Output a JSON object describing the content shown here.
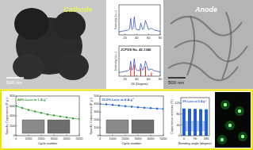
{
  "images": [
    {
      "label": "Cathode",
      "scale_bar": "500 nm"
    },
    {
      "label": "Anode",
      "scale_bar": "500 nm"
    }
  ],
  "chart_data": [
    {
      "type": "line",
      "y_label": "Intensity (a.u.)",
      "x": [
        10,
        15,
        20,
        25,
        28,
        30,
        31,
        32,
        34,
        36,
        38,
        40,
        45,
        47,
        50,
        52,
        55,
        60,
        65,
        70,
        75,
        80
      ],
      "series": [
        {
          "color": "#1f3fbf",
          "values": [
            10,
            12,
            14,
            16,
            20,
            55,
            30,
            18,
            22,
            60,
            25,
            18,
            16,
            40,
            18,
            20,
            48,
            18,
            22,
            16,
            14,
            12
          ]
        }
      ],
      "xlim": [
        10,
        80
      ],
      "xticks": [
        20,
        40,
        60,
        80
      ],
      "ylim": [
        0,
        100
      ],
      "tick_labels": "x"
    },
    {
      "type": "line",
      "y_label": "Intensity (a.u.)",
      "x_label": "2θ (Degree)",
      "annotation": "JCPDS No. 42-1340",
      "x": [
        10,
        15,
        20,
        25,
        28,
        30,
        31,
        32,
        34,
        36,
        38,
        40,
        45,
        47,
        50,
        52,
        55,
        60,
        65,
        70,
        75,
        80
      ],
      "series": [
        {
          "type": "line",
          "color": "#1f3fbf",
          "values": [
            12,
            14,
            16,
            18,
            22,
            50,
            28,
            20,
            24,
            58,
            26,
            20,
            18,
            42,
            20,
            22,
            50,
            20,
            24,
            18,
            16,
            14
          ]
        },
        {
          "type": "bar",
          "color": "#e02020",
          "values": [
            0,
            0,
            0,
            0,
            0,
            30,
            0,
            0,
            0,
            38,
            0,
            0,
            0,
            26,
            0,
            0,
            32,
            0,
            12,
            0,
            0,
            0
          ]
        }
      ],
      "xlim": [
        10,
        80
      ],
      "xticks": [
        20,
        40,
        60,
        80
      ],
      "ylim": [
        0,
        100
      ],
      "tick_labels": "x"
    },
    {
      "type": "line",
      "marker": "circle",
      "x_label": "Cycle number",
      "y_label": "Specific Capacitance (F g⁻¹)",
      "annotation": "44% Loss at 1 A g⁻¹",
      "x": [
        0,
        500,
        1000,
        1500,
        2000,
        2500,
        3000,
        3500,
        4000,
        4500,
        5000
      ],
      "series": [
        {
          "color": "#2ca02c",
          "values": [
            600,
            560,
            520,
            490,
            460,
            430,
            410,
            390,
            370,
            350,
            336
          ]
        }
      ],
      "xlim": [
        0,
        5000
      ],
      "xticks": [
        0,
        1000,
        2000,
        3000,
        4000,
        5000
      ],
      "ylim": [
        0,
        800
      ],
      "yticks": [
        0,
        200,
        400,
        600,
        800
      ]
    },
    {
      "type": "line",
      "marker": "circle",
      "x_label": "Cycle number",
      "y_label": "Specific Capacitance (F g⁻¹)",
      "annotation": "15.5% Loss at 4 A g⁻¹",
      "x": [
        0,
        500,
        1000,
        1500,
        2000,
        2500,
        3000,
        3500,
        4000,
        4500,
        5000
      ],
      "series": [
        {
          "color": "#1f5fd0",
          "values": [
            400,
            395,
            388,
            380,
            372,
            365,
            358,
            352,
            347,
            342,
            338
          ]
        }
      ],
      "xlim": [
        0,
        5000
      ],
      "xticks": [
        0,
        1000,
        2000,
        3000,
        4000,
        5000
      ],
      "ylim": [
        0,
        500
      ],
      "yticks": [
        0,
        100,
        200,
        300,
        400,
        500
      ]
    },
    {
      "type": "bar",
      "x_label": "Bending angle (degree)",
      "y_label": "Capacitance retention (%)",
      "annotation": "3% Loss at 5 A g⁻¹",
      "x": [
        0,
        45,
        90,
        135,
        180
      ],
      "series": [
        {
          "color": "#1f5fd0",
          "values": [
            100,
            99,
            98.5,
            97.5,
            97
          ]
        }
      ],
      "xlim": [
        -25,
        205
      ],
      "xticks": [
        0,
        90,
        180
      ],
      "ylim": [
        0,
        140
      ],
      "yticks": [
        0,
        40,
        80,
        120
      ]
    }
  ]
}
